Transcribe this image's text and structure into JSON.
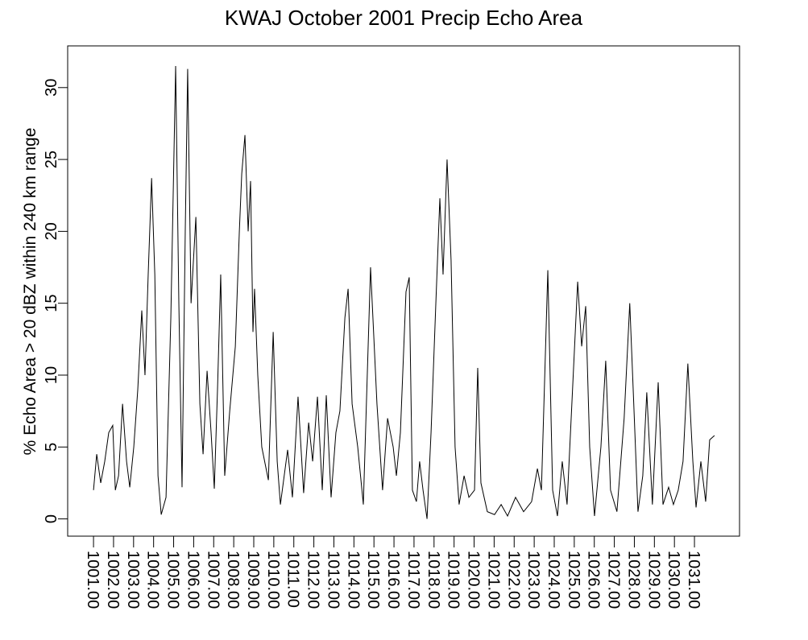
{
  "chart_data": {
    "type": "line",
    "title": "KWAJ October 2001 Precip Echo Area",
    "y_label": "% Echo Area > 20 dBZ within 240 km range",
    "xlim": [
      999.71,
      1033.25
    ],
    "ylim": [
      -1.2,
      32.9
    ],
    "yticks": [
      0,
      5,
      10,
      15,
      20,
      25,
      30
    ],
    "xticks": [
      {
        "value": 1001,
        "label": "1001.00"
      },
      {
        "value": 1002,
        "label": "1002.00"
      },
      {
        "value": 1003,
        "label": "1003.00"
      },
      {
        "value": 1004,
        "label": "1004.00"
      },
      {
        "value": 1005,
        "label": "1005.00"
      },
      {
        "value": 1006,
        "label": "1006.00"
      },
      {
        "value": 1007,
        "label": "1007.00"
      },
      {
        "value": 1008,
        "label": "1008.00"
      },
      {
        "value": 1009,
        "label": "1009.00"
      },
      {
        "value": 1010,
        "label": "1010.00"
      },
      {
        "value": 1011,
        "label": "1011.00"
      },
      {
        "value": 1012,
        "label": "1012.00"
      },
      {
        "value": 1013,
        "label": "1013.00"
      },
      {
        "value": 1014,
        "label": "1014.00"
      },
      {
        "value": 1015,
        "label": "1015.00"
      },
      {
        "value": 1016,
        "label": "1016.00"
      },
      {
        "value": 1017,
        "label": "1017.00"
      },
      {
        "value": 1018,
        "label": "1018.00"
      },
      {
        "value": 1019,
        "label": "1019.00"
      },
      {
        "value": 1020,
        "label": "1020.00"
      },
      {
        "value": 1021,
        "label": "1021.00"
      },
      {
        "value": 1022,
        "label": "1022.00"
      },
      {
        "value": 1023,
        "label": "1023.00"
      },
      {
        "value": 1024,
        "label": "1024.00"
      },
      {
        "value": 1025,
        "label": "1025.00"
      },
      {
        "value": 1026,
        "label": "1026.00"
      },
      {
        "value": 1027,
        "label": "1027.00"
      },
      {
        "value": 1028,
        "label": "1028.00"
      },
      {
        "value": 1029,
        "label": "1029.00"
      },
      {
        "value": 1030,
        "label": "1030.00"
      },
      {
        "value": 1031,
        "label": "1031.00"
      }
    ],
    "color": "#000000",
    "x": [
      1001.0,
      1001.16,
      1001.36,
      1001.56,
      1001.76,
      1001.96,
      1002.09,
      1002.25,
      1002.45,
      1002.65,
      1002.81,
      1003.01,
      1003.21,
      1003.41,
      1003.57,
      1003.73,
      1003.9,
      1004.06,
      1004.22,
      1004.38,
      1004.62,
      1004.86,
      1005.1,
      1005.26,
      1005.42,
      1005.58,
      1005.7,
      1005.87,
      1006.11,
      1006.31,
      1006.47,
      1006.67,
      1006.87,
      1007.03,
      1007.19,
      1007.35,
      1007.55,
      1007.8,
      1008.08,
      1008.28,
      1008.4,
      1008.56,
      1008.72,
      1008.84,
      1008.96,
      1009.04,
      1009.2,
      1009.4,
      1009.73,
      1009.97,
      1010.17,
      1010.33,
      1010.69,
      1010.93,
      1011.21,
      1011.49,
      1011.74,
      1011.94,
      1012.18,
      1012.42,
      1012.62,
      1012.86,
      1013.1,
      1013.3,
      1013.55,
      1013.71,
      1013.91,
      1014.19,
      1014.47,
      1014.83,
      1015.15,
      1015.43,
      1015.68,
      1015.96,
      1016.12,
      1016.32,
      1016.6,
      1016.76,
      1016.92,
      1017.12,
      1017.28,
      1017.45,
      1017.65,
      1017.85,
      1018.09,
      1018.29,
      1018.45,
      1018.65,
      1018.85,
      1019.05,
      1019.25,
      1019.5,
      1019.74,
      1020.02,
      1020.18,
      1020.34,
      1020.66,
      1021.02,
      1021.35,
      1021.67,
      1022.07,
      1022.47,
      1022.87,
      1023.16,
      1023.36,
      1023.68,
      1023.92,
      1024.16,
      1024.4,
      1024.64,
      1024.88,
      1025.17,
      1025.37,
      1025.57,
      1025.77,
      1026.01,
      1026.33,
      1026.57,
      1026.81,
      1027.13,
      1027.49,
      1027.77,
      1027.97,
      1028.18,
      1028.42,
      1028.62,
      1028.9,
      1029.19,
      1029.43,
      1029.71,
      1029.95,
      1030.19,
      1030.43,
      1030.67,
      1030.92,
      1031.08,
      1031.32,
      1031.56,
      1031.76,
      1032.0
    ],
    "values": [
      2,
      4.5,
      2.5,
      4,
      6,
      6.5,
      2,
      3,
      8,
      4,
      2.2,
      5,
      9,
      14.5,
      10,
      17,
      23.7,
      17,
      3,
      0.3,
      1.5,
      14,
      31.5,
      15,
      2.2,
      20,
      31.3,
      15,
      21,
      8,
      4.5,
      10.3,
      6,
      2.1,
      9,
      17,
      3,
      7.5,
      12,
      20,
      24,
      26.7,
      20,
      23.5,
      13,
      16,
      10,
      5,
      2.7,
      13,
      4,
      1,
      4.8,
      1.5,
      8.5,
      1.8,
      6.7,
      4,
      8.5,
      2,
      8.6,
      1.5,
      6,
      7.5,
      14,
      16,
      8,
      5,
      1,
      17.5,
      8,
      2,
      7,
      5,
      3,
      6,
      15.8,
      16.8,
      2,
      1.2,
      4,
      2,
      0,
      6,
      15,
      22.3,
      17,
      25,
      18,
      5,
      1,
      3,
      1.5,
      2,
      10.5,
      2.5,
      0.5,
      0.3,
      1,
      0.2,
      1.5,
      0.5,
      1.2,
      3.5,
      2,
      17.3,
      2,
      0.2,
      4,
      1,
      8,
      16.5,
      12,
      14.8,
      5,
      0.2,
      5,
      11,
      2,
      0.5,
      7,
      15,
      8,
      0.5,
      3,
      8.8,
      1,
      9.5,
      1,
      2.2,
      1,
      2,
      4,
      10.8,
      4,
      0.8,
      4,
      1.2,
      5.5,
      5.8
    ]
  }
}
